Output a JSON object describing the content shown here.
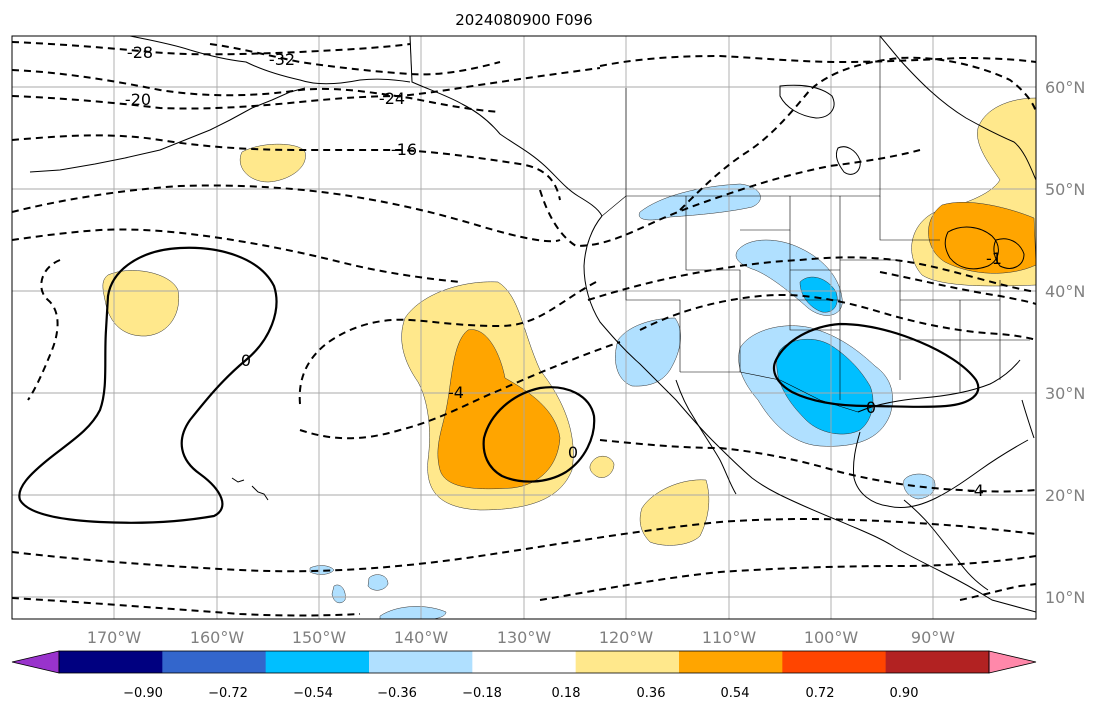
{
  "title": "2024080900 F096",
  "lat_labels": [
    "60°N",
    "50°N",
    "40°N",
    "30°N",
    "20°N",
    "10°N"
  ],
  "lon_labels": [
    "170°W",
    "160°W",
    "150°W",
    "140°W",
    "130°W",
    "120°W",
    "110°W",
    "100°W",
    "90°W"
  ],
  "contour_labels": [
    "-28",
    "-32",
    "-20",
    "-24",
    "-16",
    "0",
    "-4",
    "0",
    "0",
    "-4",
    "-1"
  ],
  "colorbar": {
    "tick_labels": [
      "−0.90",
      "−0.72",
      "−0.54",
      "−0.36",
      "−0.18",
      "0.18",
      "0.36",
      "0.54",
      "0.72",
      "0.90"
    ],
    "colors": [
      "#9933cc",
      "#000080",
      "#3366cc",
      "#00bfff",
      "#b0e0ff",
      "#ffffff",
      "#ffe88c",
      "#ffa500",
      "#ff4500",
      "#b22222",
      "#ff88aa"
    ]
  },
  "shading_colors": {
    "light_yellow": "#ffe88c",
    "orange": "#ffa500",
    "light_blue": "#b0e0ff",
    "blue": "#00bfff"
  }
}
